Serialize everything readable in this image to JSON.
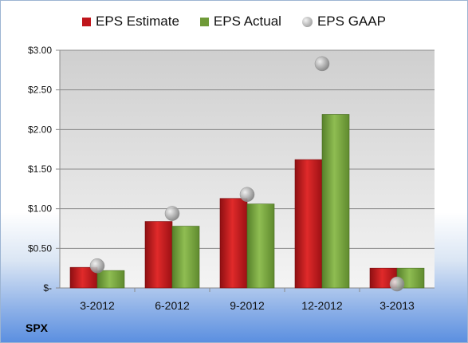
{
  "legend": {
    "estimate": "EPS Estimate",
    "actual": "EPS Actual",
    "gaap": "EPS GAAP"
  },
  "ticker": "SPX",
  "colors": {
    "estimate": "#c0161c",
    "actual": "#6f9a38",
    "gaap": "#a9a9a9",
    "plot_bg_top": "#cfcfcf",
    "plot_bg_bottom": "#f4f4f4"
  },
  "chart_data": {
    "type": "bar",
    "categories": [
      "3-2012",
      "6-2012",
      "9-2012",
      "12-2012",
      "3-2013"
    ],
    "series": [
      {
        "name": "EPS Estimate",
        "values": [
          0.26,
          0.84,
          1.13,
          1.62,
          0.25
        ]
      },
      {
        "name": "EPS Actual",
        "values": [
          0.22,
          0.78,
          1.06,
          2.19,
          0.25
        ]
      },
      {
        "name": "EPS GAAP",
        "type": "scatter",
        "values": [
          0.28,
          0.94,
          1.18,
          2.83,
          0.05
        ]
      }
    ],
    "y_ticks": [
      {
        "value": 0,
        "label": "$-"
      },
      {
        "value": 0.5,
        "label": "$0.50"
      },
      {
        "value": 1.0,
        "label": "$1.00"
      },
      {
        "value": 1.5,
        "label": "$1.50"
      },
      {
        "value": 2.0,
        "label": "$2.00"
      },
      {
        "value": 2.5,
        "label": "$2.50"
      },
      {
        "value": 3.0,
        "label": "$3.00"
      }
    ],
    "ylim": [
      0,
      3.0
    ],
    "grid": true,
    "legend_position": "top"
  }
}
